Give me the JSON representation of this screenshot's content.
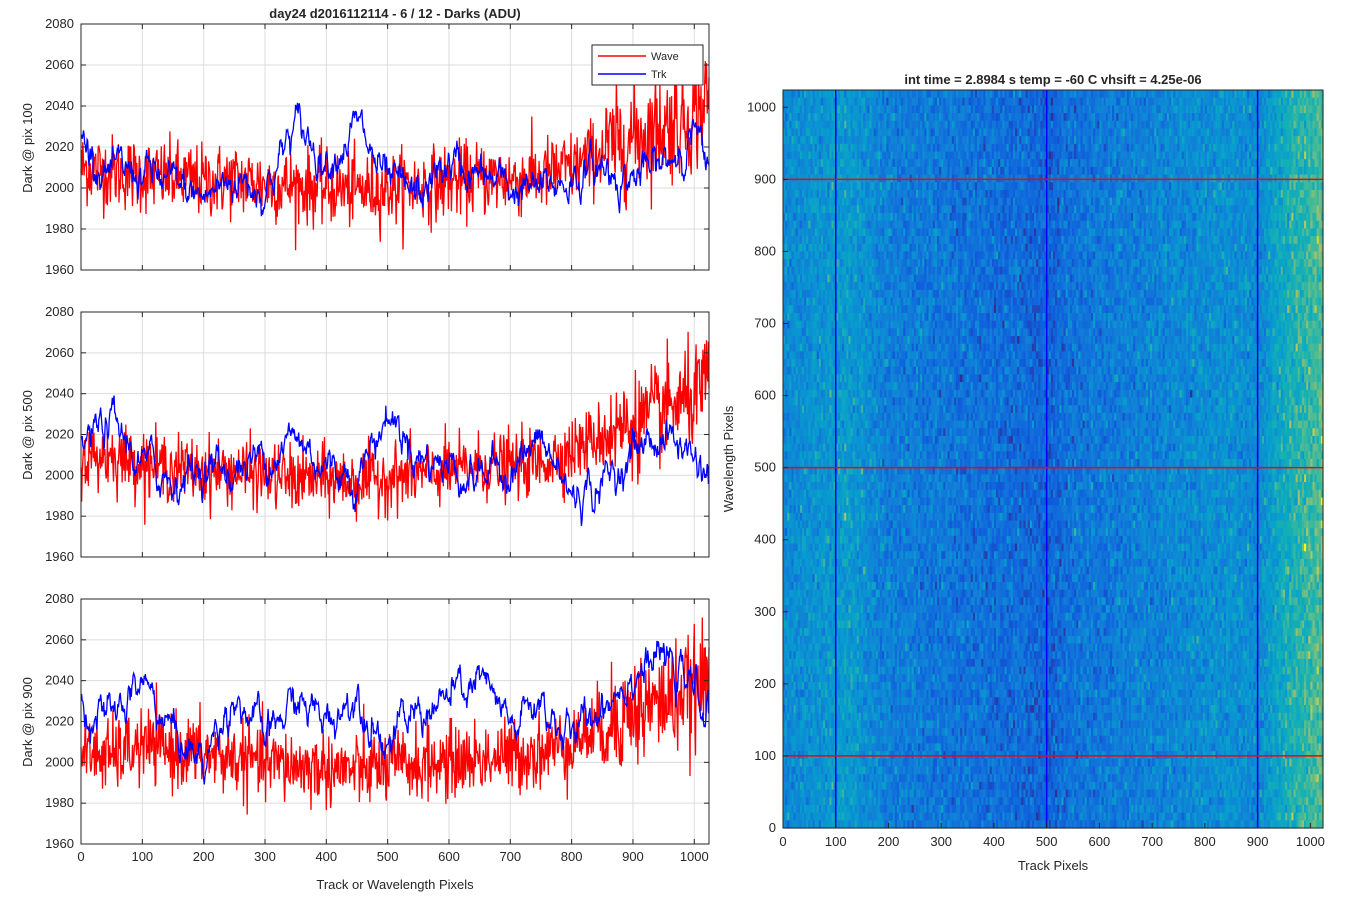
{
  "figure": {
    "title": "day24 d2016112114 - 6 / 12 - Darks (ADU)",
    "shared_xlabel": "Track or Wavelength Pixels"
  },
  "legend": {
    "entries": [
      {
        "name": "Wave",
        "color": "#ff0000"
      },
      {
        "name": "Trk",
        "color": "#0000ff"
      }
    ]
  },
  "colors": {
    "wave": "#ff0000",
    "trk": "#0000ff",
    "grid": "#dcdcdc",
    "image_low": "#1f7fd4",
    "image_mid": "#2a9fc8",
    "image_high": "#a8c85a"
  },
  "chart_data": [
    {
      "type": "line",
      "ylabel": "Dark @ pix 100",
      "xlim": [
        0,
        1024
      ],
      "ylim": [
        1960,
        2080
      ],
      "xticks": [
        0,
        100,
        200,
        300,
        400,
        500,
        600,
        700,
        800,
        900,
        1000
      ],
      "yticks": [
        1960,
        1980,
        2000,
        2020,
        2040,
        2060,
        2080
      ],
      "grid": true,
      "legend_position": "top-right",
      "series": [
        {
          "name": "Wave",
          "color": "#ff0000",
          "x": [
            0,
            50,
            100,
            150,
            200,
            250,
            300,
            350,
            400,
            450,
            500,
            550,
            600,
            650,
            700,
            750,
            800,
            850,
            900,
            950,
            1000,
            1024
          ],
          "values": [
            2010,
            2008,
            2006,
            2005,
            2003,
            2004,
            2002,
            2001,
            2000,
            1999,
            2000,
            2001,
            2003,
            2005,
            2004,
            2006,
            2010,
            2018,
            2025,
            2030,
            2035,
            2045
          ]
        },
        {
          "name": "Trk",
          "color": "#0000ff",
          "x": [
            0,
            50,
            100,
            150,
            200,
            250,
            300,
            350,
            400,
            450,
            500,
            550,
            600,
            650,
            700,
            750,
            800,
            850,
            900,
            950,
            1000,
            1024
          ],
          "values": [
            2025,
            2005,
            2008,
            2000,
            1995,
            2005,
            2000,
            2030,
            2015,
            2030,
            2000,
            1995,
            2012,
            2005,
            2000,
            1998,
            2005,
            2010,
            2005,
            2010,
            2030,
            2000
          ]
        }
      ]
    },
    {
      "type": "line",
      "ylabel": "Dark @ pix 500",
      "xlim": [
        0,
        1024
      ],
      "ylim": [
        1960,
        2080
      ],
      "xticks": [
        0,
        100,
        200,
        300,
        400,
        500,
        600,
        700,
        800,
        900,
        1000
      ],
      "yticks": [
        1960,
        1980,
        2000,
        2020,
        2040,
        2060,
        2080
      ],
      "grid": true,
      "series": [
        {
          "name": "Wave",
          "color": "#ff0000",
          "x": [
            0,
            50,
            100,
            150,
            200,
            250,
            300,
            350,
            400,
            450,
            500,
            550,
            600,
            650,
            700,
            750,
            800,
            850,
            900,
            950,
            1000,
            1024
          ],
          "values": [
            2008,
            2010,
            2006,
            2004,
            2002,
            2002,
            2000,
            1998,
            1998,
            1997,
            1999,
            2000,
            2002,
            2004,
            2005,
            2006,
            2012,
            2020,
            2025,
            2032,
            2038,
            2045
          ]
        },
        {
          "name": "Trk",
          "color": "#0000ff",
          "x": [
            0,
            50,
            100,
            150,
            200,
            250,
            300,
            350,
            400,
            450,
            500,
            550,
            600,
            650,
            700,
            750,
            800,
            850,
            900,
            950,
            1000,
            1024
          ],
          "values": [
            2015,
            2025,
            2005,
            1998,
            2005,
            2002,
            2010,
            2018,
            2005,
            2000,
            2030,
            2010,
            2005,
            2000,
            2005,
            2015,
            1990,
            1995,
            2012,
            2020,
            2010,
            2000
          ]
        }
      ]
    },
    {
      "type": "line",
      "ylabel": "Dark @ pix 900",
      "xlim": [
        0,
        1024
      ],
      "ylim": [
        1960,
        2080
      ],
      "xticks": [
        0,
        100,
        200,
        300,
        400,
        500,
        600,
        700,
        800,
        900,
        1000
      ],
      "yticks": [
        1960,
        1980,
        2000,
        2020,
        2040,
        2060,
        2080
      ],
      "grid": true,
      "series": [
        {
          "name": "Wave",
          "color": "#ff0000",
          "x": [
            0,
            50,
            100,
            150,
            200,
            250,
            300,
            350,
            400,
            450,
            500,
            550,
            600,
            650,
            700,
            750,
            800,
            850,
            900,
            950,
            1000,
            1024
          ],
          "values": [
            2005,
            2003,
            2008,
            2006,
            2004,
            2002,
            2000,
            1998,
            1997,
            1996,
            1998,
            1999,
            2000,
            2002,
            2003,
            2005,
            2010,
            2018,
            2025,
            2030,
            2035,
            2040
          ]
        },
        {
          "name": "Trk",
          "color": "#0000ff",
          "x": [
            0,
            50,
            100,
            150,
            200,
            250,
            300,
            350,
            400,
            450,
            500,
            550,
            600,
            650,
            700,
            750,
            800,
            850,
            900,
            950,
            1000,
            1024
          ],
          "values": [
            2030,
            2020,
            2040,
            2015,
            2000,
            2035,
            2010,
            2030,
            2020,
            2035,
            2010,
            2025,
            2030,
            2040,
            2015,
            2030,
            2010,
            2030,
            2045,
            2050,
            2035,
            2025
          ]
        }
      ]
    },
    {
      "type": "heatmap",
      "title": "int time = 2.8984 s    temp = -60 C    vhsift = 4.25e-06",
      "xlabel": "Track Pixels",
      "ylabel": "Wavelength Pixels",
      "xlim": [
        0,
        1024
      ],
      "ylim": [
        0,
        1024
      ],
      "xticks": [
        0,
        100,
        200,
        300,
        400,
        500,
        600,
        700,
        800,
        900,
        1000
      ],
      "yticks": [
        0,
        100,
        200,
        300,
        400,
        500,
        600,
        700,
        800,
        900,
        1000
      ],
      "grid": false,
      "colormap": "parula",
      "column_profile": [
        {
          "x": 0,
          "level": 0.35
        },
        {
          "x": 60,
          "level": 0.4
        },
        {
          "x": 120,
          "level": 0.45
        },
        {
          "x": 200,
          "level": 0.3
        },
        {
          "x": 350,
          "level": 0.25
        },
        {
          "x": 450,
          "level": 0.22
        },
        {
          "x": 500,
          "level": 0.18
        },
        {
          "x": 550,
          "level": 0.25
        },
        {
          "x": 700,
          "level": 0.32
        },
        {
          "x": 850,
          "level": 0.4
        },
        {
          "x": 900,
          "level": 0.35
        },
        {
          "x": 950,
          "level": 0.55
        },
        {
          "x": 1024,
          "level": 0.7
        }
      ],
      "vertical_markers": [
        100,
        500,
        900
      ],
      "horizontal_markers": [
        100,
        500,
        900
      ],
      "vertical_marker_color": "#0000ff",
      "horizontal_marker_color": "#ff0000"
    }
  ]
}
